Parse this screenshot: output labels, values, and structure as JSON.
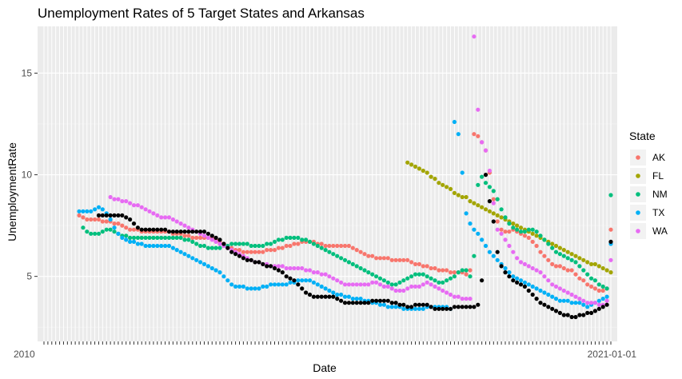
{
  "chart_data": {
    "type": "scatter",
    "title": "Unemployment Rates of 5 Target States and Arkansas",
    "xlabel": "Date",
    "ylabel": "UnemploymentRate",
    "x_count": 146,
    "x_tick_labels_note": "",
    "ylim": [
      1.8,
      17.3
    ],
    "y_ticks": [
      5,
      10,
      15
    ],
    "grid": "on",
    "legend": {
      "title": "State",
      "position": "right",
      "entries": [
        "AK",
        "FL",
        "NM",
        "TX",
        "WA"
      ]
    },
    "x_axis_edge_labels": {
      "left": "2010",
      "right": "2021-01-01"
    },
    "series": [
      {
        "name": "AK",
        "color": "#F8766D",
        "values": [
          8.0,
          7.9,
          7.8,
          7.8,
          7.8,
          7.8,
          7.7,
          7.7,
          7.7,
          7.6,
          7.6,
          7.5,
          7.4,
          7.3,
          7.3,
          7.3,
          7.2,
          7.2,
          7.2,
          7.2,
          7.2,
          7.2,
          7.2,
          7.2,
          7.1,
          7.1,
          7.1,
          7.0,
          7.0,
          6.9,
          6.9,
          6.9,
          6.9,
          6.9,
          6.9,
          6.8,
          6.7,
          6.6,
          6.5,
          6.4,
          6.3,
          6.3,
          6.2,
          6.2,
          6.2,
          6.2,
          6.2,
          6.2,
          6.3,
          6.3,
          6.3,
          6.4,
          6.4,
          6.5,
          6.5,
          6.6,
          6.6,
          6.7,
          6.7,
          6.7,
          6.7,
          6.6,
          6.6,
          6.5,
          6.5,
          6.5,
          6.5,
          6.5,
          6.5,
          6.5,
          6.4,
          6.3,
          6.2,
          6.1,
          6.0,
          6.0,
          5.9,
          5.9,
          5.9,
          5.9,
          5.8,
          5.8,
          5.8,
          5.8,
          5.8,
          5.7,
          5.6,
          5.6,
          5.5,
          5.5,
          5.4,
          5.4,
          5.3,
          5.3,
          5.3,
          5.2,
          5.2,
          5.2,
          5.2,
          5.1,
          5.3,
          12.0,
          11.9,
          11.6,
          11.2,
          10.1,
          8.8,
          7.7,
          7.3,
          7.2,
          7.2,
          7.3,
          7.2,
          7.1,
          7.0,
          6.9,
          6.7,
          6.5,
          6.2,
          6.0,
          5.8,
          5.6,
          5.5,
          5.5,
          5.4,
          5.3,
          5.3,
          5.1,
          4.9,
          4.8,
          4.6,
          4.5,
          4.4,
          4.3,
          4.3,
          4.4,
          7.3
        ]
      },
      {
        "name": "FL",
        "color": "#A3A500",
        "values": [
          10.6,
          10.5,
          10.4,
          10.3,
          10.2,
          10.1,
          9.9,
          9.8,
          9.6,
          9.5,
          9.4,
          9.3,
          9.1,
          9.0,
          8.9,
          8.9,
          8.7,
          8.6,
          8.5,
          8.4,
          8.3,
          8.2,
          8.1,
          8.0,
          7.9,
          7.8,
          7.7,
          7.6,
          7.5,
          7.4,
          7.3,
          7.2,
          7.1,
          7.0,
          6.9,
          6.8,
          6.7,
          6.6,
          6.5,
          6.4,
          6.3,
          6.2,
          6.1,
          6.0,
          5.9,
          5.8,
          5.7,
          5.6,
          5.6,
          5.5,
          5.4,
          5.3,
          5.2,
          5.1,
          5.0,
          4.9,
          4.9,
          4.9,
          4.8,
          4.8,
          4.7,
          4.6,
          4.5,
          4.4,
          4.3,
          4.2,
          4.1,
          4.0,
          3.9,
          3.8,
          3.7,
          3.7,
          3.6,
          3.6,
          3.5,
          3.5,
          3.5,
          3.5,
          3.5,
          3.6,
          3.6,
          3.5,
          3.4,
          3.3,
          3.2,
          3.1,
          3.0,
          3.0,
          2.9,
          2.9,
          2.8,
          2.7,
          2.6,
          4.4,
          13.8,
          13.2,
          12.5,
          8.8,
          7.7,
          7.0,
          6.3,
          5.5,
          4.9,
          4.5,
          4.2,
          3.9,
          3.6,
          3.4,
          3.3,
          3.2,
          3.2,
          3.1,
          3.0,
          2.9,
          2.7,
          2.6,
          2.6
        ],
        "x_start": 93
      },
      {
        "name": "NM",
        "color": "#00BF7D",
        "values": [
          7.4,
          7.2,
          7.1,
          7.1,
          7.1,
          7.2,
          7.3,
          7.3,
          7.2,
          7.1,
          7.0,
          7.0,
          6.9,
          6.9,
          6.9,
          6.9,
          6.9,
          6.9,
          6.9,
          6.9,
          6.9,
          6.9,
          6.9,
          6.9,
          6.9,
          6.9,
          6.8,
          6.8,
          6.7,
          6.6,
          6.5,
          6.5,
          6.4,
          6.4,
          6.4,
          6.4,
          6.5,
          6.5,
          6.6,
          6.6,
          6.6,
          6.6,
          6.6,
          6.5,
          6.5,
          6.5,
          6.5,
          6.6,
          6.6,
          6.7,
          6.8,
          6.8,
          6.9,
          6.9,
          6.9,
          6.9,
          6.8,
          6.8,
          6.7,
          6.6,
          6.5,
          6.4,
          6.3,
          6.2,
          6.1,
          6.0,
          5.9,
          5.8,
          5.7,
          5.6,
          5.5,
          5.4,
          5.3,
          5.2,
          5.1,
          5.0,
          4.9,
          4.8,
          4.7,
          4.6,
          4.6,
          4.7,
          4.8,
          4.9,
          5.0,
          5.1,
          5.1,
          5.1,
          5.0,
          4.9,
          4.8,
          4.7,
          4.7,
          4.8,
          4.9,
          5.0,
          5.2,
          5.3,
          5.3,
          5.0,
          6.0,
          9.5,
          9.9,
          9.6,
          9.4,
          9.2,
          8.8,
          8.3,
          7.9,
          7.6,
          7.4,
          7.3,
          7.2,
          7.2,
          7.3,
          7.3,
          7.2,
          7.0,
          6.8,
          6.6,
          6.4,
          6.2,
          6.1,
          6.0,
          5.9,
          5.8,
          5.7,
          5.5,
          5.3,
          5.1,
          4.9,
          4.8,
          4.6,
          4.5,
          4.4,
          9.0
        ],
        "x_start": 0
      },
      {
        "name": "TX",
        "color": "#00B0F6",
        "values": [
          8.2,
          8.2,
          8.2,
          8.2,
          8.3,
          8.4,
          8.3,
          8.1,
          7.8,
          7.4,
          7.1,
          6.9,
          6.8,
          6.7,
          6.7,
          6.6,
          6.6,
          6.5,
          6.5,
          6.5,
          6.5,
          6.5,
          6.5,
          6.5,
          6.4,
          6.3,
          6.2,
          6.1,
          6.0,
          5.9,
          5.8,
          5.7,
          5.6,
          5.5,
          5.4,
          5.3,
          5.2,
          5.0,
          4.8,
          4.6,
          4.5,
          4.5,
          4.5,
          4.4,
          4.4,
          4.4,
          4.4,
          4.5,
          4.5,
          4.6,
          4.6,
          4.6,
          4.6,
          4.6,
          4.7,
          4.7,
          4.8,
          4.8,
          4.8,
          4.8,
          4.7,
          4.6,
          4.5,
          4.4,
          4.3,
          4.2,
          4.1,
          4.1,
          4.0,
          4.0,
          3.9,
          3.9,
          3.9,
          3.8,
          3.8,
          3.7,
          3.7,
          3.6,
          3.6,
          3.5,
          3.5,
          3.5,
          3.5,
          3.4,
          3.4,
          3.4,
          3.4,
          3.4,
          3.4,
          3.5,
          3.5,
          3.5,
          3.5,
          3.5,
          3.5,
          3.4,
          12.6,
          12.0,
          10.1,
          8.1,
          7.6,
          7.3,
          7.1,
          6.8,
          6.5,
          6.2,
          6.0,
          5.8,
          5.6,
          5.4,
          5.2,
          5.0,
          4.9,
          4.8,
          4.7,
          4.6,
          4.5,
          4.4,
          4.3,
          4.2,
          4.1,
          4.0,
          3.9,
          3.8,
          3.8,
          3.8,
          3.7,
          3.7,
          3.7,
          3.6,
          3.5,
          3.6,
          3.7,
          3.8,
          3.9,
          4.0,
          6.6
        ],
        "x_start": 9
      },
      {
        "name": "WA",
        "color": "#E76BF3",
        "values": [
          8.9,
          8.8,
          8.8,
          8.7,
          8.7,
          8.6,
          8.5,
          8.5,
          8.4,
          8.3,
          8.2,
          8.1,
          8.0,
          7.9,
          7.9,
          7.9,
          7.8,
          7.7,
          7.6,
          7.5,
          7.4,
          7.3,
          7.2,
          7.1,
          7.0,
          6.9,
          6.8,
          6.7,
          6.6,
          6.5,
          6.4,
          6.3,
          6.2,
          6.1,
          6.0,
          5.9,
          5.8,
          5.7,
          5.7,
          5.6,
          5.6,
          5.5,
          5.5,
          5.5,
          5.5,
          5.4,
          5.4,
          5.4,
          5.4,
          5.4,
          5.3,
          5.3,
          5.2,
          5.2,
          5.1,
          5.1,
          5.0,
          4.9,
          4.8,
          4.7,
          4.6,
          4.6,
          4.6,
          4.6,
          4.6,
          4.6,
          4.6,
          4.7,
          4.7,
          4.6,
          4.5,
          4.5,
          4.4,
          4.3,
          4.3,
          4.3,
          4.4,
          4.5,
          4.5,
          4.5,
          4.6,
          4.7,
          4.6,
          4.5,
          4.4,
          4.3,
          4.2,
          4.1,
          4.0,
          4.0,
          3.9,
          3.9,
          3.9,
          16.8,
          13.2,
          11.6,
          11.2,
          10.2,
          8.6,
          7.3,
          7.1,
          6.8,
          6.5,
          6.2,
          5.9,
          5.7,
          5.6,
          5.5,
          5.4,
          5.3,
          5.2,
          5.0,
          4.8,
          4.6,
          4.5,
          4.4,
          4.3,
          4.2,
          4.1,
          4.0,
          3.9,
          3.8,
          3.7,
          3.7,
          3.7,
          3.6,
          3.6,
          3.8,
          5.8
        ],
        "x_start": 0
      },
      {
        "name": "Arkansas",
        "color": "#000000",
        "values": [
          8.0,
          8.0,
          8.0,
          8.0,
          8.0,
          8.0,
          8.0,
          7.9,
          7.8,
          7.6,
          7.4,
          7.3,
          7.3,
          7.3,
          7.3,
          7.3,
          7.3,
          7.3,
          7.2,
          7.2,
          7.2,
          7.2,
          7.2,
          7.2,
          7.2,
          7.2,
          7.2,
          7.2,
          7.1,
          7.0,
          6.9,
          6.8,
          6.6,
          6.4,
          6.2,
          6.1,
          6.0,
          5.9,
          5.8,
          5.8,
          5.7,
          5.7,
          5.6,
          5.5,
          5.5,
          5.4,
          5.3,
          5.2,
          5.0,
          4.9,
          4.8,
          4.6,
          4.4,
          4.2,
          4.1,
          4.0,
          4.0,
          4.0,
          4.0,
          4.0,
          4.0,
          3.9,
          3.8,
          3.7,
          3.7,
          3.7,
          3.7,
          3.7,
          3.7,
          3.7,
          3.8,
          3.8,
          3.8,
          3.8,
          3.8,
          3.7,
          3.7,
          3.6,
          3.6,
          3.5,
          3.5,
          3.6,
          3.6,
          3.6,
          3.6,
          3.5,
          3.4,
          3.4,
          3.4,
          3.4,
          3.4,
          3.5,
          3.5,
          3.5,
          3.5,
          3.5,
          3.5,
          3.6,
          4.8,
          10.0,
          8.7,
          7.7,
          6.2,
          5.5,
          5.2,
          5.0,
          4.8,
          4.7,
          4.6,
          4.5,
          4.3,
          4.1,
          3.9,
          3.7,
          3.6,
          3.5,
          3.4,
          3.3,
          3.2,
          3.1,
          3.1,
          3.0,
          3.0,
          3.1,
          3.1,
          3.2,
          3.2,
          3.3,
          3.4,
          3.5,
          3.6,
          6.7
        ],
        "x_start": 0
      }
    ]
  }
}
